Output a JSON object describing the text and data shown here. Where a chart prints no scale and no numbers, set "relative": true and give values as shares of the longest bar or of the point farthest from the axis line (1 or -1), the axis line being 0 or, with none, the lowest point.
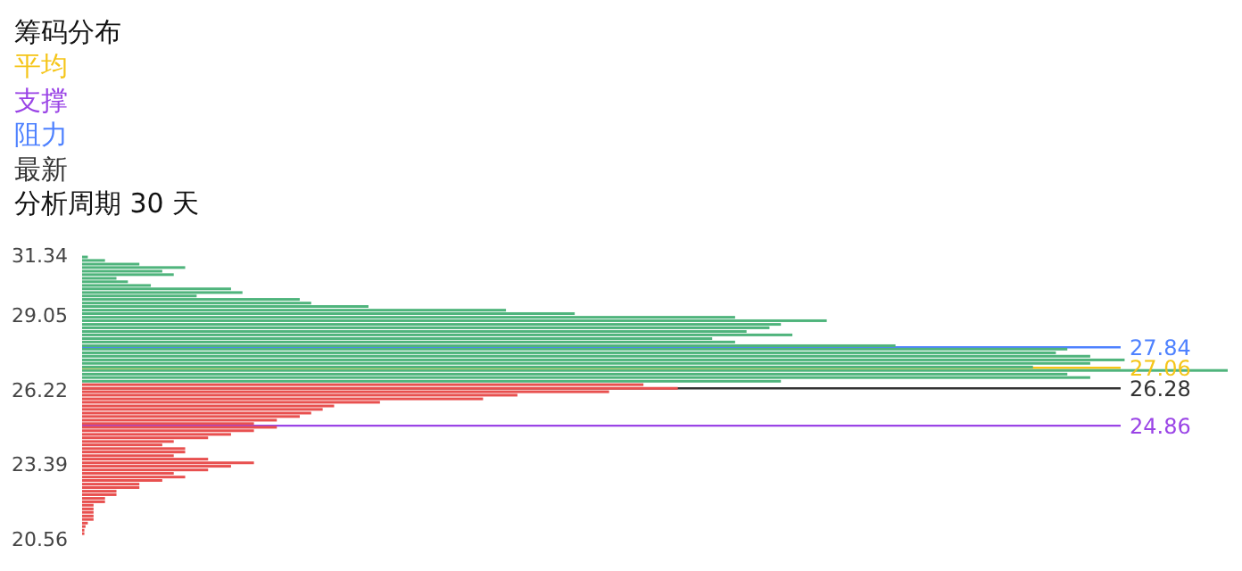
{
  "chart_data": {
    "type": "bar",
    "orientation": "horizontal",
    "relative": true,
    "title": "筹码分布",
    "subtitle": "分析周期 30 天",
    "ylim": [
      20.56,
      31.34
    ],
    "yticks": [
      20.56,
      23.39,
      26.22,
      29.05,
      31.34
    ],
    "grid": false,
    "annotations": [
      "平均",
      "支撑",
      "阻力",
      "最新"
    ],
    "series": [
      {
        "color": "#4fb47c",
        "x": [
          31.27,
          31.14,
          31.0,
          30.87,
          30.73,
          30.6,
          30.46,
          30.33,
          30.19,
          30.06,
          29.92,
          29.79,
          29.66,
          29.52,
          29.39,
          29.25,
          29.12,
          28.98,
          28.85,
          28.71,
          28.58,
          28.44,
          28.31,
          28.17,
          28.04,
          27.9,
          27.77,
          27.63,
          27.5,
          27.36,
          27.23,
          27.09,
          26.96,
          26.82,
          26.69,
          26.55
        ],
        "values": [
          0.005,
          0.02,
          0.05,
          0.09,
          0.07,
          0.08,
          0.03,
          0.04,
          0.06,
          0.13,
          0.14,
          0.1,
          0.19,
          0.2,
          0.25,
          0.37,
          0.43,
          0.57,
          0.65,
          0.61,
          0.6,
          0.58,
          0.62,
          0.55,
          0.57,
          0.71,
          0.86,
          0.85,
          0.88,
          0.91,
          0.88,
          0.83,
          1,
          0.86,
          0.88,
          0.61
        ]
      },
      {
        "color": "#e8504f",
        "x": [
          26.42,
          26.28,
          26.15,
          26.02,
          25.88,
          25.75,
          25.61,
          25.48,
          25.34,
          25.21,
          25.07,
          24.94,
          24.8,
          24.67,
          24.53,
          24.4,
          24.26,
          24.13,
          23.99,
          23.86,
          23.72,
          23.59,
          23.45,
          23.32,
          23.18,
          23.05,
          22.91,
          22.78,
          22.64,
          22.51,
          22.37,
          22.24,
          22.1,
          21.97,
          21.84,
          21.7,
          21.57,
          21.43,
          21.3,
          21.16,
          21.03,
          20.89,
          20.76
        ],
        "values": [
          0.49,
          0.52,
          0.46,
          0.38,
          0.35,
          0.26,
          0.22,
          0.21,
          0.2,
          0.19,
          0.17,
          0.15,
          0.17,
          0.15,
          0.13,
          0.11,
          0.08,
          0.07,
          0.09,
          0.09,
          0.08,
          0.11,
          0.15,
          0.13,
          0.11,
          0.08,
          0.09,
          0.07,
          0.05,
          0.05,
          0.03,
          0.03,
          0.02,
          0.02,
          0.01,
          0.01,
          0.01,
          0.01,
          0.01,
          0.005,
          0.003,
          0.002,
          0.002
        ]
      }
    ],
    "ref_lines": [
      {
        "axis": "y",
        "value": 27.06,
        "label": "27.06",
        "color": "#f5c518"
      },
      {
        "axis": "y",
        "value": 24.86,
        "label": "24.86",
        "color": "#9a44e6"
      },
      {
        "axis": "y",
        "value": 27.84,
        "label": "27.84",
        "color": "#4f82ff"
      },
      {
        "axis": "y",
        "value": 26.28,
        "label": "26.28",
        "color": "#333333"
      }
    ]
  }
}
